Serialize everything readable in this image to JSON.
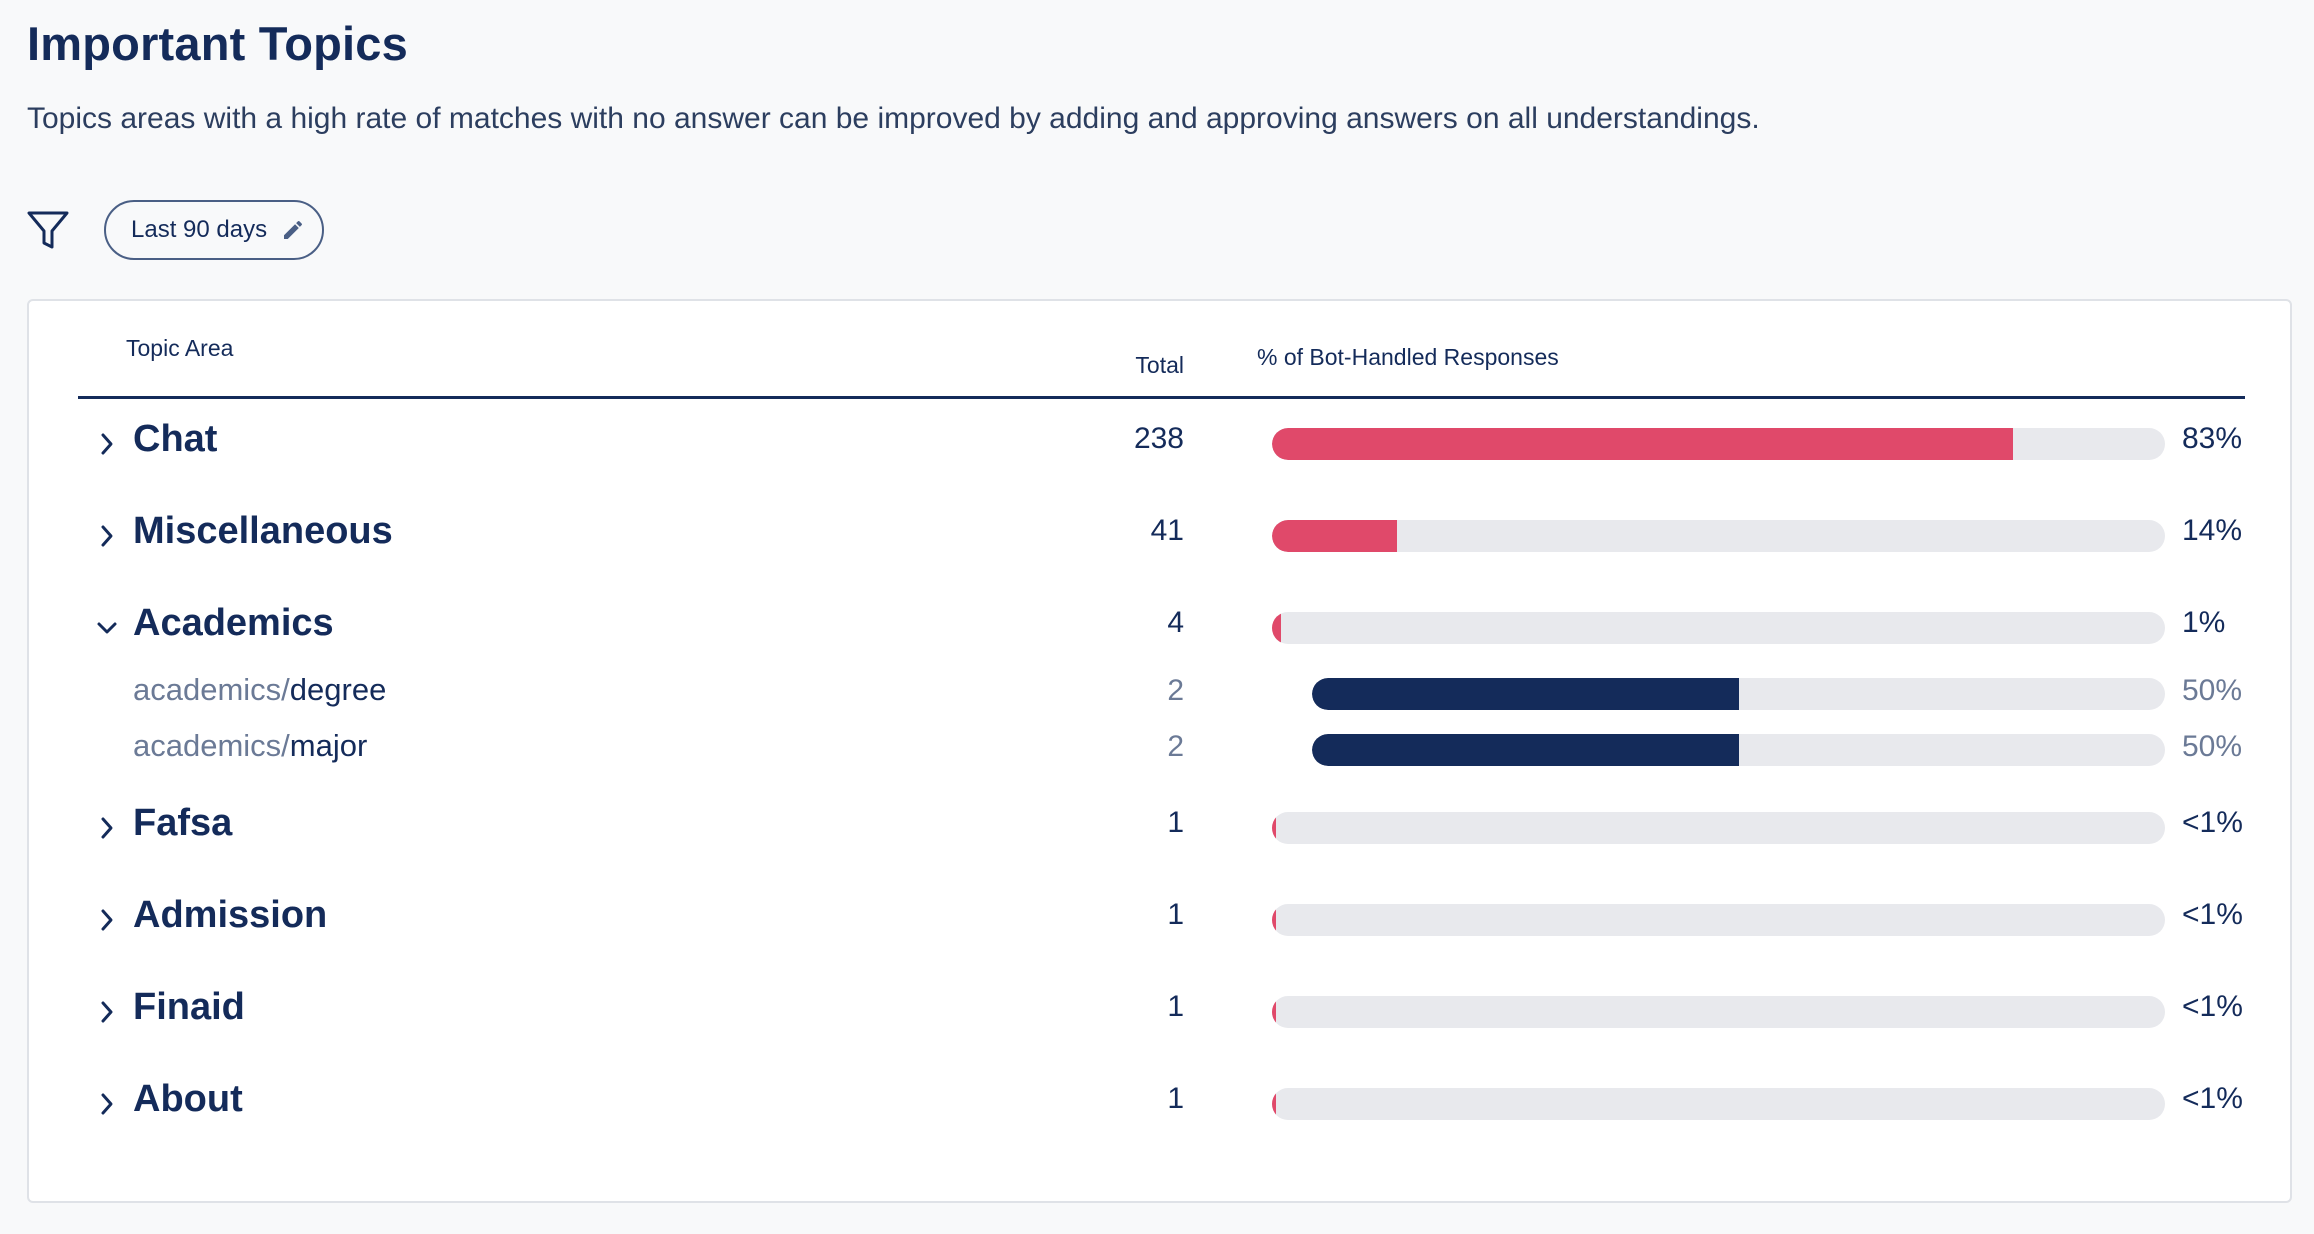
{
  "page": {
    "title": "Important Topics",
    "subtitle": "Topics areas with a high rate of matches with no answer can be improved by adding and approving answers on all understandings."
  },
  "filter": {
    "icon": "filter-icon",
    "chip_label": "Last 90 days",
    "chip_icon": "pencil-icon"
  },
  "table": {
    "headers": {
      "topic": "Topic Area",
      "total": "Total",
      "pct": "% of Bot-Handled Responses"
    },
    "colors": {
      "topic_bar": "#e0496a",
      "subtopic_bar": "#142b5a",
      "track": "#e8e9ed"
    },
    "rows": [
      {
        "name": "Chat",
        "total": "238",
        "pct_label": "83%",
        "fraction": 0.83,
        "expanded": false
      },
      {
        "name": "Miscellaneous",
        "total": "41",
        "pct_label": "14%",
        "fraction": 0.14,
        "expanded": false
      },
      {
        "name": "Academics",
        "total": "4",
        "pct_label": "1%",
        "fraction": 0.01,
        "expanded": true,
        "children": [
          {
            "prefix": "academics/",
            "leaf": "degree",
            "total": "2",
            "pct_label": "50%",
            "fraction": 0.5
          },
          {
            "prefix": "academics/",
            "leaf": "major",
            "total": "2",
            "pct_label": "50%",
            "fraction": 0.5
          }
        ]
      },
      {
        "name": "Fafsa",
        "total": "1",
        "pct_label": "<1%",
        "fraction": 0.002,
        "expanded": false
      },
      {
        "name": "Admission",
        "total": "1",
        "pct_label": "<1%",
        "fraction": 0.002,
        "expanded": false
      },
      {
        "name": "Finaid",
        "total": "1",
        "pct_label": "<1%",
        "fraction": 0.002,
        "expanded": false
      },
      {
        "name": "About",
        "total": "1",
        "pct_label": "<1%",
        "fraction": 0.002,
        "expanded": false
      }
    ]
  }
}
